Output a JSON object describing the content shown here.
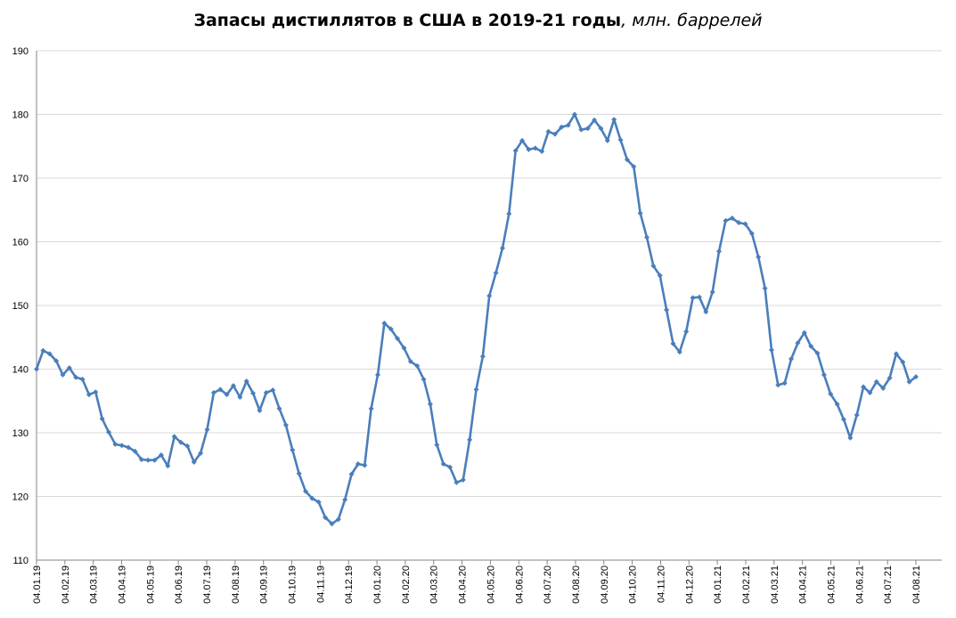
{
  "chart_data": {
    "type": "line",
    "title": "Запасы дистиллятов в США в 2019-21 годы",
    "title_unit": ", млн. баррелей",
    "xlabel": "",
    "ylabel": "",
    "ylim": [
      110,
      190
    ],
    "y_ticks": [
      110,
      120,
      130,
      140,
      150,
      160,
      170,
      180,
      190
    ],
    "grid": true,
    "legend": "none",
    "x_ticks": [
      "04.01.19",
      "04.02.19",
      "04.03.19",
      "04.04.19",
      "04.05.19",
      "04.06.19",
      "04.07.19",
      "04.08.19",
      "04.09.19",
      "04.10.19",
      "04.11.19",
      "04.12.19",
      "04.01.20",
      "04.02.20",
      "04.03.20",
      "04.04.20",
      "04.05.20",
      "04.06.20",
      "04.07.20",
      "04.08.20",
      "04.09.20",
      "04.10.20",
      "04.11.20",
      "04.12.20",
      "04.01.21",
      "04.02.21",
      "04.03.21",
      "04.04.21",
      "04.05.21",
      "04.06.21",
      "04.07.21",
      "04.08.21"
    ],
    "series": [
      {
        "color": "#4a7ebb",
        "values": [
          140.0,
          142.9,
          142.4,
          141.3,
          139.1,
          140.2,
          138.7,
          138.4,
          136.0,
          136.4,
          132.2,
          130.1,
          128.2,
          128.0,
          127.7,
          127.1,
          125.8,
          125.7,
          125.7,
          126.5,
          124.8,
          129.4,
          128.5,
          127.9,
          125.4,
          126.8,
          130.5,
          136.3,
          136.8,
          136.0,
          137.4,
          135.6,
          138.1,
          136.2,
          133.5,
          136.3,
          136.7,
          133.8,
          131.2,
          127.3,
          123.6,
          120.8,
          119.7,
          119.1,
          116.7,
          115.7,
          116.4,
          119.5,
          123.5,
          125.1,
          124.9,
          133.8,
          139.1,
          147.2,
          146.3,
          144.8,
          143.3,
          141.2,
          140.5,
          138.4,
          134.5,
          128.1,
          125.1,
          124.6,
          122.2,
          122.6,
          128.9,
          136.8,
          142.0,
          151.5,
          155.1,
          159.0,
          164.4,
          174.3,
          175.9,
          174.5,
          174.7,
          174.2,
          177.3,
          176.9,
          178.0,
          178.3,
          180.0,
          177.6,
          177.8,
          179.1,
          177.8,
          175.9,
          179.2,
          176.0,
          172.9,
          171.8,
          164.5,
          160.7,
          156.2,
          154.7,
          149.3,
          144.0,
          142.7,
          145.9,
          151.2,
          151.3,
          149.0,
          152.1,
          158.5,
          163.3,
          163.7,
          163.0,
          162.8,
          161.3,
          157.6,
          152.7,
          143.0,
          137.5,
          137.8,
          141.6,
          144.1,
          145.7,
          143.6,
          142.5,
          139.1,
          136.1,
          134.5,
          132.1,
          129.2,
          132.8,
          137.2,
          136.3,
          138.0,
          137.0,
          138.6,
          142.4,
          141.1,
          138.0,
          138.8
        ]
      }
    ]
  }
}
